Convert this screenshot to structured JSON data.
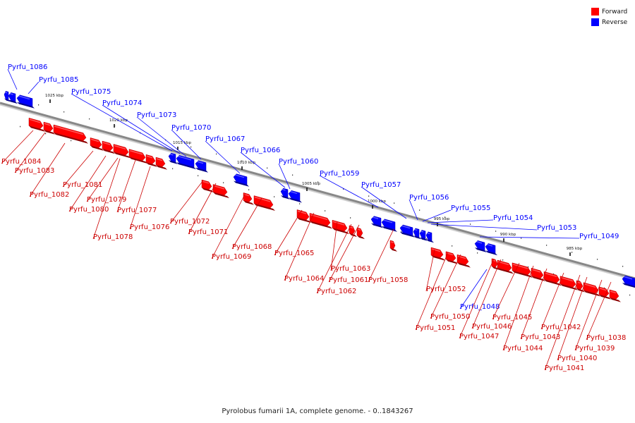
{
  "caption": "Pyrolobus fumarii 1A, complete genome. - 0..1843267",
  "legend": [
    {
      "label": "Forward",
      "color": "#ff0000"
    },
    {
      "label": "Reverse",
      "color": "#0000ff"
    }
  ],
  "colors": {
    "forward": "#ff0000",
    "reverse": "#0000ff",
    "axis": "#888888"
  },
  "axis_ticks": [
    "1025 kbp",
    "1020 kbp",
    "1015 kbp",
    "1010 kbp",
    "1005 kbp",
    "1000 kbp",
    "995 kbp",
    "990 kbp",
    "985 kbp"
  ],
  "reverse_genes": [
    "Pyrfu_1086",
    "Pyrfu_1085",
    "Pyrfu_1075",
    "Pyrfu_1074",
    "Pyrfu_1073",
    "Pyrfu_1070",
    "Pyrfu_1067",
    "Pyrfu_1066",
    "Pyrfu_1060",
    "Pyrfu_1059",
    "Pyrfu_1057",
    "Pyrfu_1056",
    "Pyrfu_1055",
    "Pyrfu_1054",
    "Pyrfu_1053",
    "Pyrfu_1049",
    "Pyrfu_1048"
  ],
  "forward_genes": [
    "Pyrfu_1084",
    "Pyrfu_1083",
    "Pyrfu_1082",
    "Pyrfu_1081",
    "Pyrfu_1080",
    "Pyrfu_1079",
    "Pyrfu_1078",
    "Pyrfu_1077",
    "Pyrfu_1076",
    "Pyrfu_1072",
    "Pyrfu_1071",
    "Pyrfu_1069",
    "Pyrfu_1068",
    "Pyrfu_1065",
    "Pyrfu_1064",
    "Pyrfu_1063",
    "Pyrfu_1062",
    "Pyrfu_1061",
    "Pyrfu_1058",
    "Pyrfu_1052",
    "Pyrfu_1051",
    "Pyrfu_1050",
    "Pyrfu_1047",
    "Pyrfu_1046",
    "Pyrfu_1045",
    "Pyrfu_1044",
    "Pyrfu_1043",
    "Pyrfu_1042",
    "Pyrfu_1041",
    "Pyrfu_1040",
    "Pyrfu_1039",
    "Pyrfu_1038"
  ]
}
